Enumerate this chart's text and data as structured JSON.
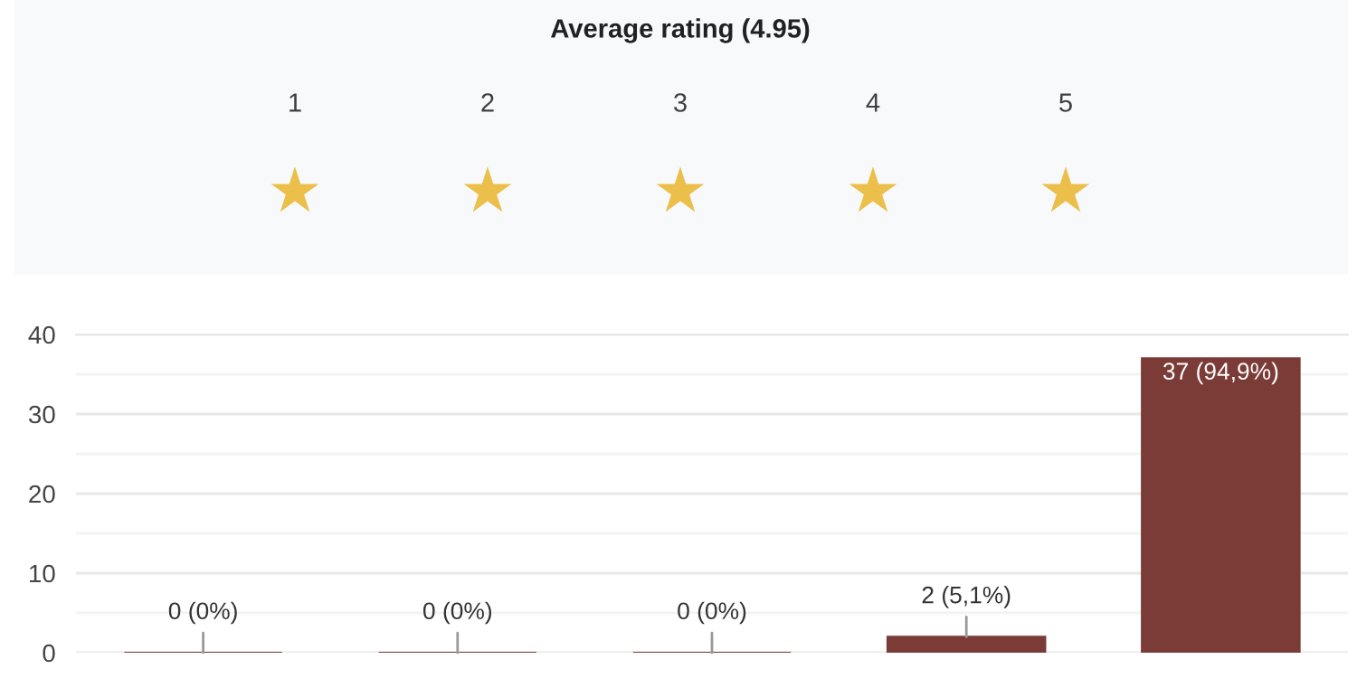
{
  "chart_data": {
    "type": "bar",
    "title": "Average rating (4.95)",
    "annotations": [
      "1",
      "2",
      "3",
      "4",
      "5"
    ],
    "categories": [
      null,
      null,
      null,
      null,
      null
    ],
    "values": [
      0,
      0,
      0,
      2,
      37
    ],
    "value_labels": [
      "0 (0%)",
      "0 (0%)",
      "0 (0%)",
      "2 (5,1%)",
      "37 (94,9%)"
    ],
    "color": "#7b3b37",
    "ylim": [
      0,
      40
    ],
    "yticks": [
      0,
      10,
      20,
      30,
      40
    ],
    "grid": "y"
  }
}
